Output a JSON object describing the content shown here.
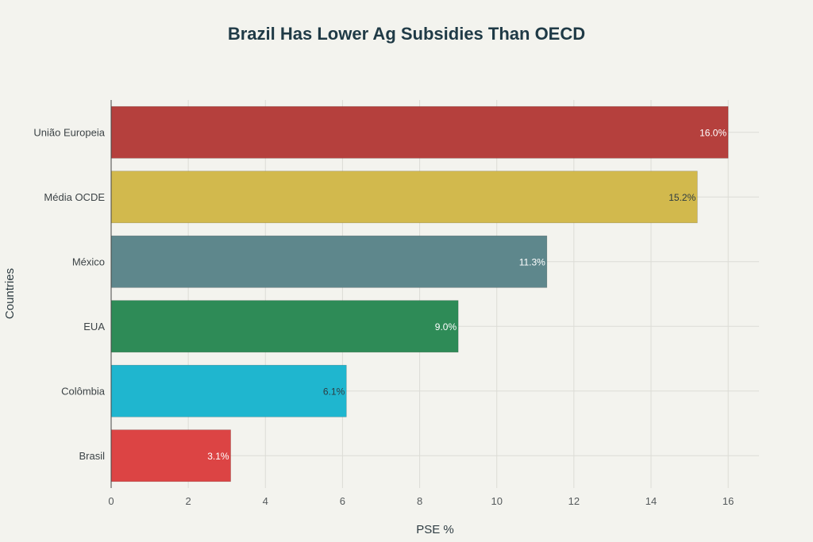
{
  "chart_data": {
    "type": "bar",
    "orientation": "horizontal",
    "title": "Brazil Has Lower Ag Subsidies Than OECD",
    "xlabel": "PSE %",
    "ylabel": "Countries",
    "xlim": [
      0,
      16.8
    ],
    "xticks": [
      0,
      2,
      4,
      6,
      8,
      10,
      12,
      14,
      16
    ],
    "grid": true,
    "categories": [
      "União Europeia",
      "Média OCDE",
      "México",
      "EUA",
      "Colômbia",
      "Brasil"
    ],
    "values": [
      16.0,
      15.2,
      11.3,
      9.0,
      6.1,
      3.1
    ],
    "data_labels": [
      "16.0%",
      "15.2%",
      "11.3%",
      "9.0%",
      "6.1%",
      "3.1%"
    ],
    "colors": [
      "#b5403d",
      "#d2b94d",
      "#5e878c",
      "#2e8b57",
      "#1fb6cf",
      "#dc4444"
    ],
    "label_colors": [
      "#ffffff",
      "#2e3c42",
      "#ffffff",
      "#ffffff",
      "#2e3c42",
      "#ffffff"
    ]
  }
}
